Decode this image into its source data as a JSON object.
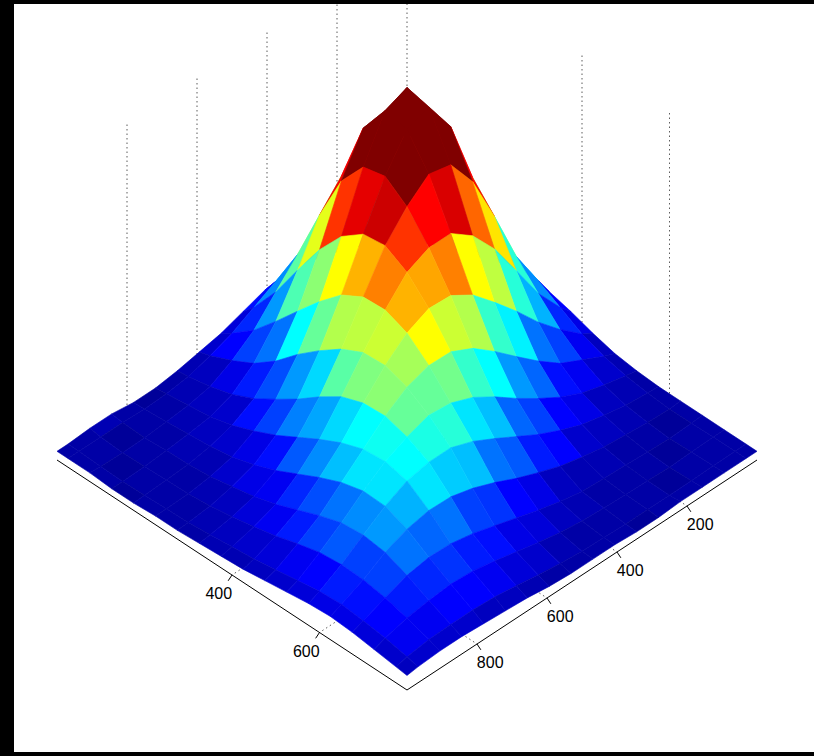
{
  "chart_data": {
    "type": "surface",
    "color": "jet",
    "grid": true,
    "x": [
      0,
      50,
      100,
      150,
      200,
      250,
      300,
      350,
      400,
      450,
      500,
      550,
      600,
      650,
      700,
      750,
      800
    ],
    "y": [
      0,
      62.5,
      125,
      187.5,
      250,
      312.5,
      375,
      437.5,
      500,
      562.5,
      625,
      687.5,
      750,
      812.5,
      875,
      937.5,
      1000
    ],
    "xlim": [
      0,
      800
    ],
    "ylim": [
      0,
      1000
    ],
    "zlim": [
      0,
      100
    ],
    "xticks": [
      400,
      600
    ],
    "yticks": [
      200,
      400,
      600,
      800
    ],
    "color_range": [
      0,
      80
    ],
    "z": [
      [
        3,
        4,
        5,
        8,
        10,
        13,
        12,
        11,
        7,
        6,
        4,
        3,
        2,
        3,
        4,
        3,
        3
      ],
      [
        3,
        5,
        8,
        17,
        21,
        27,
        24,
        21,
        13,
        10,
        5,
        4,
        3,
        3,
        2,
        3,
        3
      ],
      [
        4,
        9,
        17,
        31,
        39,
        49,
        43,
        37,
        22,
        15,
        8,
        5,
        4,
        3,
        3,
        2,
        3
      ],
      [
        6,
        15,
        31,
        46,
        67,
        70,
        71,
        48,
        36,
        19,
        12,
        6,
        5,
        4,
        3,
        3,
        2
      ],
      [
        9,
        23,
        40,
        67,
        83,
        97,
        81,
        66,
        41,
        30,
        16,
        11,
        6,
        4,
        3,
        3,
        3
      ],
      [
        12,
        27,
        45,
        74,
        96,
        99,
        86,
        72,
        50,
        38,
        22,
        15,
        8,
        6,
        4,
        3,
        3
      ],
      [
        12,
        26,
        42,
        70,
        81,
        92,
        80,
        74,
        56,
        44,
        27,
        20,
        11,
        8,
        5,
        4,
        3
      ],
      [
        10,
        21,
        33,
        52,
        62,
        73,
        70,
        66,
        60,
        45,
        37,
        23,
        17,
        9,
        7,
        5,
        4
      ],
      [
        8,
        13,
        24,
        33,
        45,
        50,
        60,
        57,
        56,
        46,
        40,
        27,
        21,
        13,
        9,
        6,
        4
      ],
      [
        5,
        9,
        15,
        19,
        29,
        34,
        44,
        46,
        50,
        43,
        41,
        30,
        25,
        16,
        12,
        7,
        5
      ],
      [
        4,
        6,
        9,
        11,
        18,
        22,
        30,
        34,
        39,
        38,
        38,
        31,
        28,
        19,
        15,
        9,
        6
      ],
      [
        3,
        4,
        5,
        8,
        10,
        15,
        18,
        25,
        28,
        33,
        32,
        30,
        28,
        21,
        17,
        10,
        7
      ],
      [
        3,
        3,
        4,
        5,
        6,
        10,
        12,
        17,
        19,
        25,
        26,
        28,
        24,
        22,
        15,
        12,
        8
      ],
      [
        3,
        2,
        3,
        3,
        4,
        4,
        5,
        8,
        10,
        14,
        15,
        19,
        18,
        19,
        15,
        11,
        8
      ],
      [
        3,
        3,
        2,
        3,
        3,
        3,
        4,
        5,
        7,
        8,
        11,
        12,
        14,
        13,
        12,
        10,
        7
      ],
      [
        3,
        3,
        3,
        2,
        3,
        3,
        3,
        3,
        4,
        6,
        7,
        9,
        10,
        10,
        9,
        9,
        6
      ],
      [
        3,
        3,
        3,
        3,
        3,
        2,
        3,
        3,
        3,
        3,
        4,
        5,
        5,
        6,
        6,
        6,
        5
      ]
    ]
  }
}
